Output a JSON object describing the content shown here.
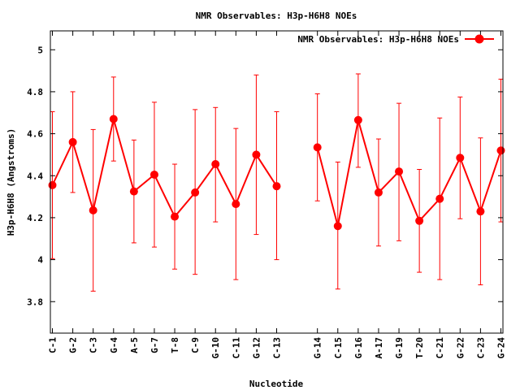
{
  "chart_data": {
    "type": "line",
    "title": "NMR Observables: H3p-H6H8 NOEs",
    "xlabel": "Nucleotide",
    "ylabel": "H3p-H6H8 (Angstroms)",
    "ylim": [
      3.65,
      5.09
    ],
    "yticks": [
      3.8,
      4,
      4.2,
      4.4,
      4.6,
      4.8,
      5
    ],
    "ytick_labels": [
      "3.8",
      "4",
      "4.2",
      "4.4",
      "4.6",
      "4.8",
      "5"
    ],
    "grid": false,
    "legend_position": "top-right",
    "series": [
      {
        "name": "NMR Observables: H3p-H6H8 NOEs",
        "color": "#ff0000",
        "segments": [
          {
            "categories": [
              "C-1",
              "G-2",
              "C-3",
              "G-4",
              "A-5",
              "G-7",
              "T-8",
              "C-9",
              "G-10",
              "C-11",
              "G-12",
              "C-13"
            ],
            "x": [
              1,
              2,
              3,
              4,
              5,
              6,
              7,
              8,
              9,
              10,
              11,
              12
            ],
            "values": [
              4.355,
              4.56,
              4.235,
              4.67,
              4.325,
              4.405,
              4.205,
              4.32,
              4.455,
              4.265,
              4.5,
              4.35
            ],
            "err_low": [
              4.005,
              4.32,
              3.85,
              4.47,
              4.08,
              4.06,
              3.955,
              3.93,
              4.18,
              3.905,
              4.12,
              4.0
            ],
            "err_high": [
              4.705,
              4.8,
              4.62,
              4.87,
              4.57,
              4.75,
              4.455,
              4.715,
              4.725,
              4.625,
              4.88,
              4.705
            ]
          },
          {
            "categories": [
              "G-14",
              "C-15",
              "G-16",
              "A-17",
              "G-19",
              "T-20",
              "C-21",
              "G-22",
              "C-23",
              "G-24"
            ],
            "x": [
              14,
              15,
              16,
              17,
              18,
              19,
              20,
              21,
              22,
              23
            ],
            "values": [
              4.535,
              4.16,
              4.665,
              4.32,
              4.42,
              4.185,
              4.29,
              4.485,
              4.23,
              4.52
            ],
            "err_low": [
              4.28,
              3.86,
              4.44,
              4.065,
              4.09,
              3.94,
              3.905,
              4.195,
              3.88,
              4.18
            ],
            "err_high": [
              4.79,
              4.465,
              4.885,
              4.575,
              4.745,
              4.43,
              4.675,
              4.775,
              4.58,
              4.86
            ]
          }
        ]
      }
    ]
  }
}
